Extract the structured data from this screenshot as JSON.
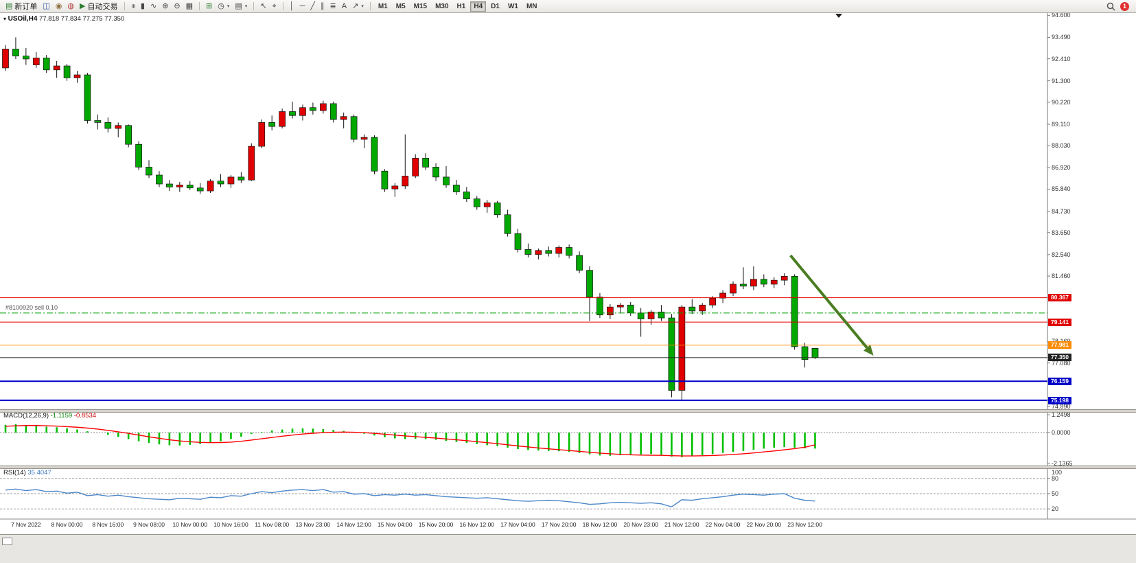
{
  "toolbar": {
    "groups": [
      {
        "name": "trade-group",
        "items": [
          {
            "name": "new-order-button",
            "icon": "new-order-icon",
            "glyph": "▤",
            "glyph_color": "#2e7d32",
            "label": "新订单"
          },
          {
            "name": "chart-window-button",
            "icon": "chart-window-icon",
            "glyph": "◫",
            "glyph_color": "#355a9e"
          },
          {
            "name": "profile-button",
            "icon": "profile-icon",
            "glyph": "◉",
            "glyph_color": "#8a6d3b"
          },
          {
            "name": "community-button",
            "icon": "community-icon",
            "glyph": "◍",
            "glyph_color": "#b23b3b"
          },
          {
            "name": "auto-trading-button",
            "icon": "auto-trading-icon",
            "glyph": "▶",
            "glyph_color": "#2e7d32",
            "label": "自动交易"
          }
        ]
      },
      {
        "name": "chart-type-group",
        "items": [
          {
            "name": "bar-chart-button",
            "icon": "ohlc-bars-icon",
            "glyph": "≡",
            "rotate": 90
          },
          {
            "name": "candle-chart-button",
            "icon": "candlestick-icon",
            "glyph": "▮"
          },
          {
            "name": "line-chart-button",
            "icon": "line-chart-icon",
            "glyph": "∿"
          },
          {
            "name": "zoom-in-button",
            "icon": "zoom-in-icon",
            "glyph": "⊕"
          },
          {
            "name": "zoom-out-button",
            "icon": "zoom-out-icon",
            "glyph": "⊖"
          },
          {
            "name": "tile-windows-button",
            "icon": "tile-windows-icon",
            "glyph": "▦"
          }
        ]
      },
      {
        "name": "chart-tools-group",
        "items": [
          {
            "name": "indicators-button",
            "icon": "indicators-icon",
            "glyph": "⊞",
            "glyph_color": "#2e7d32"
          },
          {
            "name": "periods-button",
            "icon": "clock-icon",
            "glyph": "◷",
            "caret": true
          },
          {
            "name": "templates-button",
            "icon": "template-icon",
            "glyph": "▤",
            "caret": true
          }
        ]
      },
      {
        "name": "cursor-group",
        "items": [
          {
            "name": "cursor-button",
            "icon": "cursor-icon",
            "glyph": "↖"
          },
          {
            "name": "crosshair-button",
            "icon": "crosshair-icon",
            "glyph": "⌖"
          }
        ]
      },
      {
        "name": "drawing-group",
        "items": [
          {
            "name": "vertical-line-button",
            "icon": "vertical-line-icon",
            "glyph": "│"
          },
          {
            "name": "horizontal-line-button",
            "icon": "horizontal-line-icon",
            "glyph": "─"
          },
          {
            "name": "trendline-button",
            "icon": "trendline-icon",
            "glyph": "╱"
          },
          {
            "name": "channel-button",
            "icon": "channel-icon",
            "glyph": "∥"
          },
          {
            "name": "fibonacci-button",
            "icon": "fibonacci-icon",
            "glyph": "≣"
          },
          {
            "name": "text-button",
            "icon": "text-icon",
            "glyph": "A"
          },
          {
            "name": "arrows-button",
            "icon": "arrow-tool-icon",
            "glyph": "↗",
            "caret": true
          }
        ]
      }
    ],
    "timeframes": [
      {
        "label": "M1"
      },
      {
        "label": "M5"
      },
      {
        "label": "M15"
      },
      {
        "label": "M30"
      },
      {
        "label": "H1"
      },
      {
        "label": "H4",
        "active": true
      },
      {
        "label": "D1"
      },
      {
        "label": "W1"
      },
      {
        "label": "MN"
      }
    ],
    "notification_badge": "1"
  },
  "chart": {
    "symbol_period": "USOil,H4",
    "ohlc": "77.818 77.834 77.275 77.350"
  },
  "chart_data": {
    "type": "candlestick",
    "symbol": "USOil",
    "timeframe": "H4",
    "up_color": "#e00000",
    "down_color": "#00a800",
    "candles": [
      [
        91.95,
        93.1,
        91.8,
        92.9
      ],
      [
        92.9,
        93.49,
        92.4,
        92.55
      ],
      [
        92.55,
        92.95,
        92.1,
        92.4
      ],
      [
        92.1,
        92.75,
        91.95,
        92.45
      ],
      [
        92.45,
        92.6,
        91.7,
        91.85
      ],
      [
        91.85,
        92.3,
        91.45,
        92.05
      ],
      [
        92.05,
        92.15,
        91.3,
        91.45
      ],
      [
        91.45,
        91.8,
        91.2,
        91.6
      ],
      [
        91.6,
        91.7,
        89.15,
        89.3
      ],
      [
        89.3,
        89.6,
        88.85,
        89.2
      ],
      [
        89.2,
        89.45,
        88.7,
        88.9
      ],
      [
        88.9,
        89.2,
        88.45,
        89.05
      ],
      [
        89.05,
        89.1,
        87.95,
        88.1
      ],
      [
        88.1,
        88.25,
        86.8,
        86.95
      ],
      [
        86.95,
        87.3,
        86.4,
        86.55
      ],
      [
        86.55,
        86.75,
        85.95,
        86.1
      ],
      [
        86.1,
        86.3,
        85.75,
        85.95
      ],
      [
        85.95,
        86.2,
        85.7,
        86.05
      ],
      [
        86.05,
        86.25,
        85.8,
        85.9
      ],
      [
        85.9,
        86.15,
        85.6,
        85.75
      ],
      [
        85.75,
        86.35,
        85.65,
        86.25
      ],
      [
        86.25,
        86.6,
        85.95,
        86.1
      ],
      [
        86.1,
        86.55,
        85.9,
        86.45
      ],
      [
        86.45,
        86.7,
        86.15,
        86.3
      ],
      [
        86.3,
        88.15,
        86.25,
        88.0
      ],
      [
        88.0,
        89.35,
        87.9,
        89.2
      ],
      [
        89.2,
        89.55,
        88.8,
        89.0
      ],
      [
        89.0,
        89.9,
        88.9,
        89.75
      ],
      [
        89.75,
        90.25,
        89.4,
        89.55
      ],
      [
        89.55,
        90.1,
        89.3,
        89.95
      ],
      [
        89.95,
        90.2,
        89.6,
        89.8
      ],
      [
        89.8,
        90.3,
        89.65,
        90.15
      ],
      [
        90.15,
        90.25,
        89.2,
        89.35
      ],
      [
        89.35,
        89.7,
        88.9,
        89.5
      ],
      [
        89.5,
        89.6,
        88.2,
        88.35
      ],
      [
        88.35,
        88.6,
        87.9,
        88.45
      ],
      [
        88.45,
        88.55,
        86.6,
        86.75
      ],
      [
        86.75,
        86.85,
        85.7,
        85.85
      ],
      [
        85.85,
        86.15,
        85.45,
        86.0
      ],
      [
        86.0,
        88.6,
        85.85,
        86.5
      ],
      [
        86.5,
        87.6,
        86.4,
        87.4
      ],
      [
        87.4,
        87.65,
        86.8,
        86.95
      ],
      [
        86.95,
        87.15,
        86.25,
        86.45
      ],
      [
        86.45,
        87.0,
        85.9,
        86.05
      ],
      [
        86.05,
        86.3,
        85.55,
        85.7
      ],
      [
        85.7,
        85.95,
        85.2,
        85.35
      ],
      [
        85.35,
        85.5,
        84.8,
        84.95
      ],
      [
        84.95,
        85.3,
        84.65,
        85.15
      ],
      [
        85.15,
        85.25,
        84.4,
        84.55
      ],
      [
        84.55,
        84.8,
        83.45,
        83.6
      ],
      [
        83.6,
        83.85,
        82.65,
        82.8
      ],
      [
        82.8,
        83.1,
        82.4,
        82.55
      ],
      [
        82.55,
        82.85,
        82.3,
        82.75
      ],
      [
        82.75,
        82.95,
        82.45,
        82.6
      ],
      [
        82.6,
        83.0,
        82.4,
        82.9
      ],
      [
        82.9,
        83.05,
        82.35,
        82.5
      ],
      [
        82.5,
        82.7,
        81.6,
        81.75
      ],
      [
        81.75,
        81.95,
        79.2,
        80.4
      ],
      [
        80.4,
        80.6,
        79.35,
        79.5
      ],
      [
        79.5,
        80.05,
        79.3,
        79.9
      ],
      [
        79.9,
        80.1,
        79.6,
        80.0
      ],
      [
        80.0,
        80.15,
        79.45,
        79.6
      ],
      [
        79.6,
        79.85,
        78.4,
        79.3
      ],
      [
        79.3,
        79.75,
        79.0,
        79.65
      ],
      [
        79.65,
        80.0,
        79.2,
        79.35
      ],
      [
        79.35,
        79.55,
        75.35,
        75.7
      ],
      [
        75.7,
        80.0,
        75.2,
        79.9
      ],
      [
        79.9,
        80.3,
        79.55,
        79.7
      ],
      [
        79.7,
        80.1,
        79.5,
        80.0
      ],
      [
        80.0,
        80.45,
        79.85,
        80.35
      ],
      [
        80.35,
        80.75,
        80.1,
        80.6
      ],
      [
        80.6,
        81.2,
        80.45,
        81.05
      ],
      [
        81.05,
        81.9,
        80.8,
        80.95
      ],
      [
        80.95,
        81.95,
        80.75,
        81.3
      ],
      [
        81.3,
        81.55,
        80.9,
        81.05
      ],
      [
        81.05,
        81.4,
        80.85,
        81.25
      ],
      [
        81.25,
        81.6,
        81.0,
        81.45
      ],
      [
        81.45,
        81.55,
        77.75,
        77.9
      ],
      [
        77.9,
        78.1,
        76.85,
        77.25
      ],
      [
        77.818,
        77.834,
        77.275,
        77.35
      ]
    ],
    "time_labels": [
      "7 Nov 2022",
      "8 Nov 00:00",
      "8 Nov 16:00",
      "9 Nov 08:00",
      "10 Nov 00:00",
      "10 Nov 16:00",
      "11 Nov 08:00",
      "13 Nov 23:00",
      "14 Nov 12:00",
      "15 Nov 04:00",
      "15 Nov 20:00",
      "16 Nov 12:00",
      "17 Nov 04:00",
      "17 Nov 20:00",
      "18 Nov 12:00",
      "20 Nov 23:00",
      "21 Nov 12:00",
      "22 Nov 04:00",
      "22 Nov 20:00",
      "23 Nov 12:00"
    ],
    "price_axis_labels": [
      {
        "text": "94.600",
        "value": 94.6
      },
      {
        "text": "93.490",
        "value": 93.49
      },
      {
        "text": "92.410",
        "value": 92.41
      },
      {
        "text": "91.300",
        "value": 91.3
      },
      {
        "text": "90.220",
        "value": 90.22
      },
      {
        "text": "89.110",
        "value": 89.11
      },
      {
        "text": "88.030",
        "value": 88.03
      },
      {
        "text": "86.920",
        "value": 86.92
      },
      {
        "text": "85.840",
        "value": 85.84
      },
      {
        "text": "84.730",
        "value": 84.73
      },
      {
        "text": "83.650",
        "value": 83.65
      },
      {
        "text": "82.540",
        "value": 82.54
      },
      {
        "text": "81.460",
        "value": 81.46
      },
      {
        "text": "78.160",
        "value": 78.16
      },
      {
        "text": "77.080",
        "value": 77.08
      },
      {
        "text": "74.890",
        "value": 74.89
      }
    ],
    "price_lines": [
      {
        "name": "horizontal-line-upper",
        "price": 80.367,
        "label": "80.367",
        "color": "#e00000",
        "style": "solid",
        "width": 1
      },
      {
        "name": "sell-position-line",
        "price": 79.6,
        "color": "#00a000",
        "style": "dashdot",
        "width": 1,
        "text_label": "#8100920 sell 0.10"
      },
      {
        "name": "horizontal-line-mid",
        "price": 79.141,
        "label": "79.141",
        "color": "#e00000",
        "style": "solid",
        "width": 1
      },
      {
        "name": "horizontal-line-orange",
        "price": 77.981,
        "label": "77.981",
        "color": "#ff8a00",
        "style": "solid",
        "width": 1
      },
      {
        "name": "current-price-line",
        "price": 77.35,
        "label": "77.350",
        "color": "#222222",
        "style": "solid",
        "width": 1
      },
      {
        "name": "support-line-1",
        "price": 76.159,
        "label": "76.159",
        "color": "#0000c8",
        "style": "solid",
        "width": 2
      },
      {
        "name": "support-line-2",
        "price": 75.198,
        "label": "75.198",
        "color": "#0000c8",
        "style": "solid",
        "width": 2
      }
    ],
    "annotations": [
      {
        "type": "arrow",
        "color": "#4a7d21",
        "from": {
          "index": 76.6,
          "price": 82.5
        },
        "to": {
          "index": 84.7,
          "price": 77.45
        }
      }
    ],
    "indicators": [
      {
        "name": "MACD",
        "label": "MACD(12,26,9)",
        "values_text": [
          "-1.1159",
          "-0.8534"
        ],
        "histogram_color": "#00c000",
        "signal_color": "#ff0000",
        "axis_labels": [
          {
            "text": "1.2498",
            "value": 1.2498
          },
          {
            "text": "0.0000",
            "value": 0
          },
          {
            "text": "-2.1365",
            "value": -2.1365
          }
        ],
        "histogram": [
          0.55,
          0.6,
          0.52,
          0.48,
          0.42,
          0.38,
          0.3,
          0.22,
          0.1,
          0.0,
          -0.15,
          -0.3,
          -0.45,
          -0.6,
          -0.72,
          -0.82,
          -0.88,
          -0.9,
          -0.85,
          -0.8,
          -0.72,
          -0.6,
          -0.45,
          -0.28,
          -0.1,
          0.05,
          0.15,
          0.22,
          0.28,
          0.3,
          0.28,
          0.25,
          0.2,
          0.12,
          0.02,
          -0.08,
          -0.2,
          -0.32,
          -0.4,
          -0.45,
          -0.42,
          -0.45,
          -0.5,
          -0.58,
          -0.65,
          -0.72,
          -0.8,
          -0.88,
          -0.95,
          -1.05,
          -1.15,
          -1.22,
          -1.25,
          -1.28,
          -1.3,
          -1.35,
          -1.42,
          -1.52,
          -1.6,
          -1.62,
          -1.58,
          -1.55,
          -1.52,
          -1.5,
          -1.55,
          -1.68,
          -1.72,
          -1.65,
          -1.58,
          -1.5,
          -1.42,
          -1.35,
          -1.28,
          -1.2,
          -1.12,
          -1.05,
          -1.0,
          -1.05,
          -1.1,
          -1.1159
        ],
        "signal": [
          0.45,
          0.48,
          0.5,
          0.5,
          0.48,
          0.46,
          0.42,
          0.38,
          0.32,
          0.25,
          0.16,
          0.06,
          -0.05,
          -0.17,
          -0.29,
          -0.4,
          -0.5,
          -0.58,
          -0.64,
          -0.68,
          -0.7,
          -0.69,
          -0.66,
          -0.6,
          -0.52,
          -0.43,
          -0.34,
          -0.25,
          -0.17,
          -0.1,
          -0.04,
          0.0,
          0.03,
          0.04,
          0.03,
          0.0,
          -0.05,
          -0.11,
          -0.17,
          -0.23,
          -0.28,
          -0.33,
          -0.38,
          -0.44,
          -0.5,
          -0.56,
          -0.63,
          -0.7,
          -0.77,
          -0.85,
          -0.93,
          -1.0,
          -1.07,
          -1.13,
          -1.19,
          -1.25,
          -1.31,
          -1.37,
          -1.43,
          -1.48,
          -1.52,
          -1.55,
          -1.57,
          -1.58,
          -1.59,
          -1.61,
          -1.63,
          -1.63,
          -1.62,
          -1.6,
          -1.57,
          -1.53,
          -1.48,
          -1.42,
          -1.35,
          -1.28,
          -1.2,
          -1.12,
          -1.02,
          -0.8534
        ]
      },
      {
        "name": "RSI",
        "label": "RSI(14)",
        "value_text": "35.4047",
        "line_color": "#4a86c8",
        "levels": [
          80,
          50,
          20
        ],
        "axis_labels": [
          {
            "text": "100",
            "value": 100
          },
          {
            "text": "80",
            "value": 80
          },
          {
            "text": "50",
            "value": 50
          },
          {
            "text": "20",
            "value": 20
          }
        ],
        "series": [
          57,
          59,
          56,
          58,
          54,
          55,
          51,
          53,
          46,
          48,
          45,
          47,
          44,
          42,
          40,
          39,
          38,
          41,
          40,
          39,
          43,
          42,
          46,
          45,
          50,
          54,
          52,
          55,
          57,
          58,
          56,
          58,
          53,
          54,
          49,
          50,
          46,
          48,
          47,
          49,
          47,
          48,
          46,
          44,
          43,
          42,
          41,
          42,
          40,
          38,
          36,
          35,
          36,
          37,
          36,
          34,
          32,
          29,
          30,
          32,
          33,
          32,
          31,
          32,
          30,
          24,
          38,
          37,
          40,
          42,
          44,
          47,
          49,
          48,
          47,
          49,
          50,
          41,
          37,
          35.4
        ]
      }
    ]
  }
}
